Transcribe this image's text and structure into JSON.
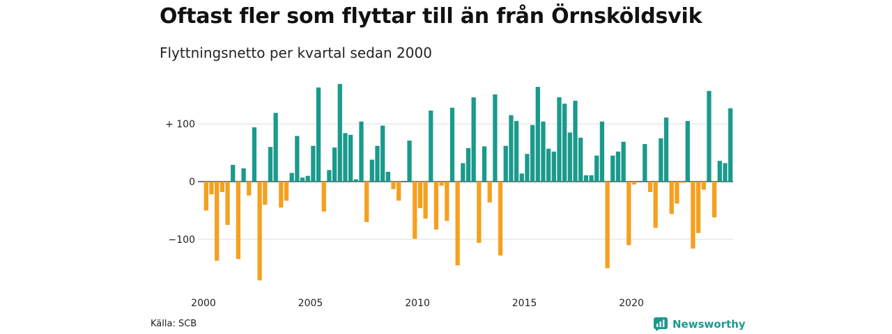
{
  "title": "Oftast fler som flyttar till än från Örnsköldsvik",
  "subtitle": "Flyttningsnetto per kvartal sedan 2000",
  "source": "Källa: SCB",
  "brand": {
    "name": "Newsworthy",
    "icon": "newsworthy-logo-icon"
  },
  "colors": {
    "positive": "#1a9a8c",
    "negative": "#f5a01e",
    "grid": "#dddddd",
    "axis": "#222222"
  },
  "chart_data": {
    "type": "bar",
    "title": "Oftast fler som flyttar till än från Örnsköldsvik",
    "subtitle": "Flyttningsnetto per kvartal sedan 2000",
    "xlabel": "",
    "ylabel": "",
    "x_start": "2000 Q1",
    "x_ticks": [
      "2000",
      "2005",
      "2010",
      "2015",
      "2020"
    ],
    "y_ticks": [
      100,
      0,
      -100
    ],
    "y_tick_labels": [
      "+ 100",
      "0",
      "−100"
    ],
    "ylim": [
      -170,
      170
    ],
    "grid": true,
    "values": [
      -50,
      -22,
      -137,
      -18,
      -75,
      29,
      -134,
      23,
      -24,
      94,
      -171,
      -40,
      60,
      119,
      -45,
      -33,
      15,
      79,
      7,
      10,
      62,
      163,
      -52,
      20,
      59,
      169,
      84,
      81,
      4,
      104,
      -70,
      38,
      62,
      97,
      17,
      -13,
      -33,
      0,
      71,
      -99,
      -46,
      -64,
      123,
      -83,
      -7,
      -68,
      128,
      -145,
      32,
      58,
      146,
      -106,
      61,
      -36,
      151,
      -128,
      62,
      115,
      105,
      14,
      48,
      98,
      164,
      104,
      57,
      52,
      146,
      135,
      85,
      140,
      76,
      11,
      11,
      45,
      104,
      -150,
      45,
      52,
      69,
      -110,
      -5,
      0,
      65,
      -18,
      -80,
      75,
      111,
      -56,
      -38,
      -2,
      105,
      -116,
      -89,
      -14,
      157,
      -62,
      36,
      32,
      127
    ]
  }
}
